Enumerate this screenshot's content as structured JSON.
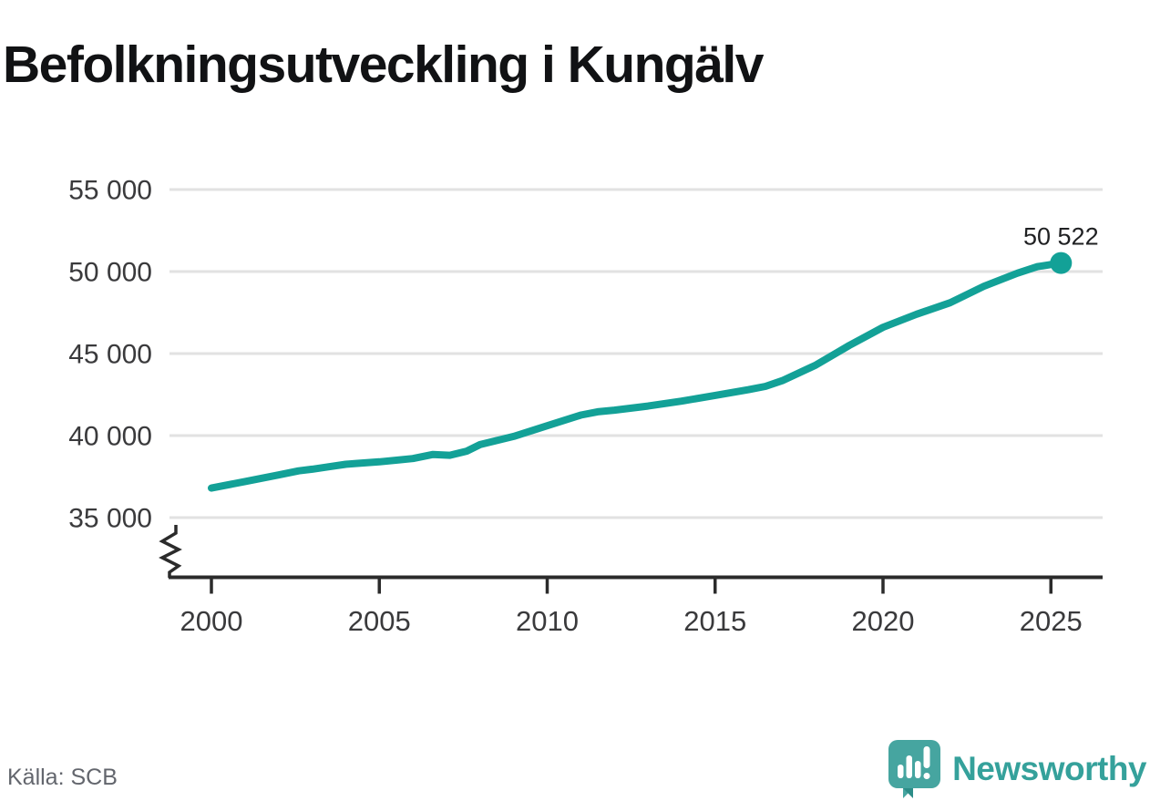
{
  "title": "Befolkningsutveckling i Kungälv",
  "source": {
    "label": "Källa: SCB"
  },
  "branding": {
    "name": "Newsworthy",
    "logo_icon": "speech-bubble-bar-chart-icon"
  },
  "colors": {
    "line": "#13a197",
    "grid": "#e2e2e2",
    "axis": "#2b2b2b",
    "tick_text": "#3a3a3c",
    "annotation_text": "#1f2022",
    "muted_text": "#63666d",
    "brand": "#35a19b",
    "brand_bubble": "#46a5a0",
    "brand_bubble_dark": "#2d8d88"
  },
  "chart_data": {
    "type": "line",
    "title": "Befolkningsutveckling i Kungälv",
    "xlabel": "",
    "ylabel": "",
    "grid": "horizontal",
    "axis_break": true,
    "xlim": [
      1999.2,
      2026.6
    ],
    "ylim": [
      35000,
      55000
    ],
    "y_ticks": [
      {
        "value": 55000,
        "label": "55 000"
      },
      {
        "value": 50000,
        "label": "50 000"
      },
      {
        "value": 45000,
        "label": "45 000"
      },
      {
        "value": 40000,
        "label": "40 000"
      },
      {
        "value": 35000,
        "label": "35 000"
      }
    ],
    "x_ticks": [
      {
        "value": 2000,
        "label": "2000"
      },
      {
        "value": 2005,
        "label": "2005"
      },
      {
        "value": 2010,
        "label": "2010"
      },
      {
        "value": 2015,
        "label": "2015"
      },
      {
        "value": 2020,
        "label": "2020"
      },
      {
        "value": 2025,
        "label": "2025"
      }
    ],
    "end_label": "50 522",
    "end_value": 50522,
    "series": [
      {
        "name": "Befolkning i Kungälv",
        "points": [
          [
            2000,
            36800
          ],
          [
            2001,
            37200
          ],
          [
            2002,
            37600
          ],
          [
            2002.6,
            37850
          ],
          [
            2003,
            37950
          ],
          [
            2003.5,
            38100
          ],
          [
            2004,
            38250
          ],
          [
            2004.3,
            38300
          ],
          [
            2005,
            38400
          ],
          [
            2006,
            38600
          ],
          [
            2006.6,
            38850
          ],
          [
            2007.1,
            38800
          ],
          [
            2007.6,
            39050
          ],
          [
            2008,
            39450
          ],
          [
            2009,
            39950
          ],
          [
            2010,
            40600
          ],
          [
            2011,
            41250
          ],
          [
            2011.5,
            41450
          ],
          [
            2012,
            41550
          ],
          [
            2013,
            41800
          ],
          [
            2014,
            42100
          ],
          [
            2015,
            42450
          ],
          [
            2016,
            42800
          ],
          [
            2016.5,
            43000
          ],
          [
            2017,
            43350
          ],
          [
            2018,
            44300
          ],
          [
            2019,
            45500
          ],
          [
            2020,
            46600
          ],
          [
            2021,
            47400
          ],
          [
            2022,
            48100
          ],
          [
            2023,
            49100
          ],
          [
            2024,
            49900
          ],
          [
            2024.6,
            50300
          ],
          [
            2025.3,
            50522
          ]
        ]
      }
    ]
  }
}
